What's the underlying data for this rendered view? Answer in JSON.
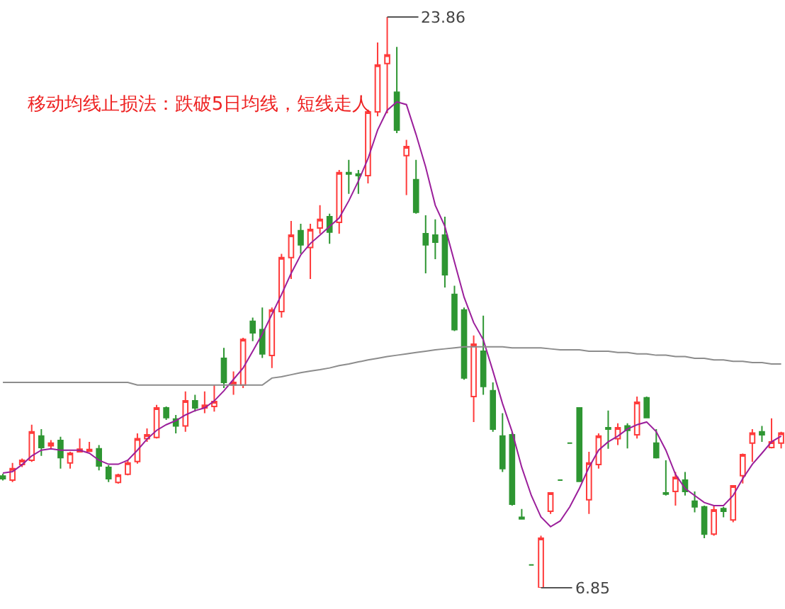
{
  "chart_data": {
    "type": "candlestick",
    "title": "移动均线止损法：跌破5日均线，短线走人",
    "categories": [
      null,
      null,
      null,
      null,
      null,
      null,
      null,
      null,
      null,
      null,
      null,
      null,
      null,
      null,
      null,
      null,
      null,
      null,
      null,
      null,
      null,
      null,
      null,
      null,
      null,
      null,
      null,
      null,
      null,
      null,
      null,
      null,
      null,
      null,
      null,
      null,
      null,
      null,
      null,
      null,
      null,
      null,
      null,
      null,
      null,
      null,
      null,
      null,
      null,
      null,
      null,
      null,
      null,
      null,
      null,
      null,
      null,
      null,
      null,
      null,
      null,
      null,
      null,
      null,
      null,
      null,
      null,
      null,
      null,
      null,
      null,
      null,
      null,
      null,
      null,
      null,
      null,
      null,
      null,
      null,
      null,
      null
    ],
    "ohlc": [
      [
        10.18,
        10.25,
        10.05,
        10.1
      ],
      [
        10.06,
        10.57,
        10.0,
        10.4
      ],
      [
        10.52,
        10.7,
        10.45,
        10.65
      ],
      [
        10.65,
        11.71,
        10.6,
        11.5
      ],
      [
        11.37,
        11.58,
        10.78,
        11.03
      ],
      [
        11.08,
        11.25,
        10.98,
        11.16
      ],
      [
        11.24,
        11.35,
        10.4,
        10.73
      ],
      [
        10.57,
        10.9,
        10.4,
        10.86
      ],
      [
        10.9,
        11.3,
        10.9,
        10.98
      ],
      [
        10.92,
        11.2,
        10.9,
        10.97
      ],
      [
        10.99,
        11.1,
        10.35,
        10.48
      ],
      [
        10.44,
        10.5,
        10.0,
        10.1
      ],
      [
        9.99,
        10.25,
        9.95,
        10.21
      ],
      [
        10.23,
        10.65,
        10.2,
        10.57
      ],
      [
        10.61,
        11.45,
        10.55,
        11.29
      ],
      [
        11.29,
        11.6,
        11.2,
        11.41
      ],
      [
        11.33,
        12.3,
        11.3,
        12.21
      ],
      [
        12.21,
        12.25,
        11.85,
        11.92
      ],
      [
        11.88,
        12.0,
        11.45,
        11.67
      ],
      [
        11.67,
        12.7,
        11.5,
        12.42
      ],
      [
        12.42,
        12.6,
        12.1,
        12.21
      ],
      [
        12.21,
        12.7,
        12.05,
        12.29
      ],
      [
        12.25,
        12.89,
        12.1,
        12.4
      ],
      [
        13.69,
        14.0,
        12.8,
        12.97
      ],
      [
        12.89,
        13.3,
        12.6,
        12.97
      ],
      [
        12.89,
        14.3,
        12.8,
        14.25
      ],
      [
        14.79,
        14.9,
        14.2,
        14.45
      ],
      [
        14.54,
        15.2,
        13.7,
        13.82
      ],
      [
        13.77,
        15.2,
        13.4,
        15.13
      ],
      [
        15.08,
        16.8,
        14.9,
        16.69
      ],
      [
        16.69,
        17.78,
        16.05,
        17.36
      ],
      [
        17.49,
        17.7,
        16.8,
        17.07
      ],
      [
        16.99,
        17.7,
        16.05,
        17.53
      ],
      [
        17.57,
        18.25,
        17.4,
        17.83
      ],
      [
        17.91,
        18.0,
        17.1,
        17.45
      ],
      [
        17.74,
        19.3,
        17.4,
        19.22
      ],
      [
        19.22,
        19.6,
        18.59,
        19.18
      ],
      [
        19.18,
        19.3,
        18.59,
        19.13
      ],
      [
        19.13,
        21.1,
        18.9,
        21.03
      ],
      [
        21.03,
        23.1,
        20.9,
        22.43
      ],
      [
        22.47,
        23.86,
        20.99,
        22.73
      ],
      [
        21.62,
        22.97,
        20.4,
        20.49
      ],
      [
        19.73,
        20.2,
        18.55,
        20.0
      ],
      [
        19.01,
        19.6,
        18.0,
        18.04
      ],
      [
        17.4,
        17.95,
        16.22,
        17.07
      ],
      [
        17.36,
        17.83,
        16.64,
        17.15
      ],
      [
        17.36,
        17.91,
        15.8,
        16.18
      ],
      [
        15.59,
        15.85,
        14.5,
        14.54
      ],
      [
        15.13,
        15.2,
        13.05,
        13.1
      ],
      [
        12.55,
        14.37,
        11.79,
        14.11
      ],
      [
        13.9,
        14.96,
        12.6,
        12.85
      ],
      [
        12.72,
        12.97,
        11.5,
        11.58
      ],
      [
        11.37,
        12.05,
        10.3,
        10.4
      ],
      [
        11.41,
        11.5,
        9.3,
        9.34
      ],
      [
        8.95,
        9.2,
        8.9,
        8.9
      ],
      [
        7.53,
        7.53,
        7.53,
        7.53
      ],
      [
        6.85,
        8.4,
        6.85,
        8.33
      ],
      [
        9.13,
        9.7,
        9.05,
        9.68
      ],
      [
        10.06,
        10.06,
        10.06,
        10.06
      ],
      [
        11.16,
        11.16,
        11.16,
        11.16
      ],
      [
        12.21,
        12.21,
        10.02,
        10.02
      ],
      [
        9.47,
        10.9,
        9.05,
        10.57
      ],
      [
        10.52,
        11.45,
        10.4,
        11.37
      ],
      [
        11.62,
        12.13,
        10.99,
        11.58
      ],
      [
        11.29,
        11.75,
        11.1,
        11.62
      ],
      [
        11.67,
        11.75,
        11.0,
        11.54
      ],
      [
        11.41,
        12.55,
        11.3,
        12.38
      ],
      [
        12.51,
        12.55,
        11.9,
        11.92
      ],
      [
        11.16,
        11.58,
        10.7,
        10.73
      ],
      [
        9.68,
        10.65,
        9.6,
        9.64
      ],
      [
        9.72,
        10.3,
        9.3,
        10.14
      ],
      [
        10.06,
        10.3,
        9.6,
        9.72
      ],
      [
        9.43,
        9.72,
        9.1,
        9.26
      ],
      [
        9.26,
        9.3,
        8.33,
        8.45
      ],
      [
        8.45,
        9.3,
        8.4,
        9.17
      ],
      [
        9.21,
        9.26,
        8.95,
        9.13
      ],
      [
        8.87,
        9.9,
        8.8,
        9.89
      ],
      [
        10.19,
        10.85,
        9.96,
        10.82
      ],
      [
        11.16,
        11.58,
        10.6,
        11.46
      ],
      [
        11.5,
        11.67,
        11.2,
        11.41
      ],
      [
        11.03,
        11.9,
        11.0,
        11.2
      ],
      [
        11.16,
        11.5,
        11.0,
        11.46
      ]
    ],
    "colors": [
      "#2e9632",
      "#ff3b3b",
      "#ff3b3b",
      "#ff3b3b",
      "#2e9632",
      "#ff3b3b",
      "#2e9632",
      "#ff3b3b",
      "#ff3b3b",
      "#ff3b3b",
      "#2e9632",
      "#2e9632",
      "#ff3b3b",
      "#ff3b3b",
      "#ff3b3b",
      "#ff3b3b",
      "#ff3b3b",
      "#2e9632",
      "#2e9632",
      "#ff3b3b",
      "#2e9632",
      "#ff3b3b",
      "#ff3b3b",
      "#2e9632",
      "#ff3b3b",
      "#ff3b3b",
      "#2e9632",
      "#2e9632",
      "#ff3b3b",
      "#ff3b3b",
      "#ff3b3b",
      "#2e9632",
      "#ff3b3b",
      "#ff3b3b",
      "#2e9632",
      "#ff3b3b",
      "#2e9632",
      "#2e9632",
      "#ff3b3b",
      "#ff3b3b",
      "#ff3b3b",
      "#2e9632",
      "#ff3b3b",
      "#2e9632",
      "#2e9632",
      "#2e9632",
      "#2e9632",
      "#2e9632",
      "#2e9632",
      "#ff3b3b",
      "#2e9632",
      "#2e9632",
      "#2e9632",
      "#2e9632",
      "#2e9632",
      "#2e9632",
      "#ff3b3b",
      "#ff3b3b",
      "#2e9632",
      "#2e9632",
      "#2e9632",
      "#ff3b3b",
      "#ff3b3b",
      "#2e9632",
      "#ff3b3b",
      "#2e9632",
      "#ff3b3b",
      "#2e9632",
      "#2e9632",
      "#2e9632",
      "#ff3b3b",
      "#2e9632",
      "#2e9632",
      "#2e9632",
      "#ff3b3b",
      "#2e9632",
      "#ff3b3b",
      "#ff3b3b",
      "#ff3b3b",
      "#2e9632",
      "#ff3b3b",
      "#ff3b3b"
    ],
    "series": [
      {
        "type": "line",
        "color": "#9b1f9b",
        "values": [
          10.27,
          10.31,
          10.52,
          10.78,
          10.95,
          10.99,
          10.95,
          10.95,
          10.95,
          10.86,
          10.65,
          10.53,
          10.53,
          10.65,
          10.95,
          11.28,
          11.54,
          11.71,
          11.83,
          12.0,
          12.13,
          12.21,
          12.42,
          12.72,
          13.06,
          13.4,
          13.9,
          14.41,
          15.0,
          15.59,
          16.22,
          16.77,
          17.11,
          17.36,
          17.62,
          17.87,
          18.38,
          18.97,
          19.64,
          20.49,
          21.08,
          21.33,
          21.25,
          20.36,
          19.39,
          18.25,
          17.62,
          16.56,
          15.51,
          14.75,
          14.24,
          13.31,
          12.34,
          11.5,
          10.44,
          9.6,
          8.96,
          8.67,
          8.84,
          9.26,
          9.81,
          10.44,
          10.95,
          11.2,
          11.37,
          11.58,
          11.71,
          11.79,
          11.5,
          10.95,
          10.23,
          9.81,
          9.6,
          9.39,
          9.3,
          9.3,
          9.6,
          10.1,
          10.53,
          10.86,
          11.2,
          11.37
        ]
      },
      {
        "type": "line",
        "color": "#8c8c8c",
        "values": [
          12.97,
          12.97,
          12.97,
          12.97,
          12.97,
          12.97,
          12.97,
          12.97,
          12.97,
          12.97,
          12.97,
          12.97,
          12.97,
          12.97,
          12.89,
          12.89,
          12.89,
          12.89,
          12.89,
          12.89,
          12.89,
          12.89,
          12.89,
          12.89,
          12.89,
          12.89,
          12.89,
          12.89,
          13.1,
          13.14,
          13.2,
          13.26,
          13.31,
          13.35,
          13.4,
          13.47,
          13.52,
          13.58,
          13.64,
          13.69,
          13.74,
          13.78,
          13.82,
          13.86,
          13.9,
          13.94,
          13.97,
          14.0,
          14.03,
          14.03,
          14.03,
          14.03,
          14.03,
          14.0,
          14.0,
          14.0,
          14.0,
          13.97,
          13.94,
          13.94,
          13.94,
          13.9,
          13.9,
          13.9,
          13.86,
          13.86,
          13.82,
          13.82,
          13.78,
          13.78,
          13.74,
          13.74,
          13.69,
          13.69,
          13.64,
          13.64,
          13.6,
          13.6,
          13.56,
          13.56,
          13.52,
          13.52
        ]
      }
    ],
    "annotations": [
      "23.86",
      "6.85"
    ]
  }
}
